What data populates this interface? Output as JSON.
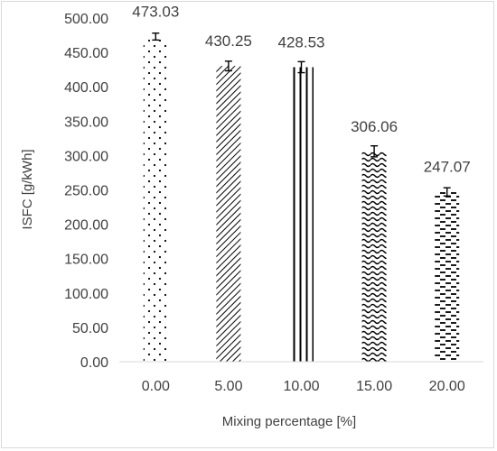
{
  "chart_data": {
    "type": "bar",
    "title": "",
    "xlabel": "Mixing percentage [%]",
    "ylabel": "ISFC [g/kWh]",
    "categories": [
      "0.00",
      "5.00",
      "10.00",
      "15.00",
      "20.00"
    ],
    "values": [
      473.03,
      430.25,
      428.53,
      306.06,
      247.07
    ],
    "data_labels": [
      "473.03",
      "430.25",
      "428.53",
      "306.06",
      "247.07"
    ],
    "error": [
      5,
      7,
      8,
      8,
      6
    ],
    "ylim": [
      0,
      500
    ],
    "yticks": [
      "0.00",
      "50.00",
      "100.00",
      "150.00",
      "200.00",
      "250.00",
      "300.00",
      "350.00",
      "400.00",
      "450.00",
      "500.00"
    ],
    "patterns": [
      "dots",
      "diagonal-hatch",
      "vertical-lines",
      "waves",
      "dashes"
    ],
    "grid": false,
    "legend": "none",
    "colors": {
      "bar_fill": "#ffffff",
      "pattern": "#000000",
      "text": "#404040",
      "axis": "#d9d9d9",
      "frame": "#d9d9d9"
    }
  }
}
